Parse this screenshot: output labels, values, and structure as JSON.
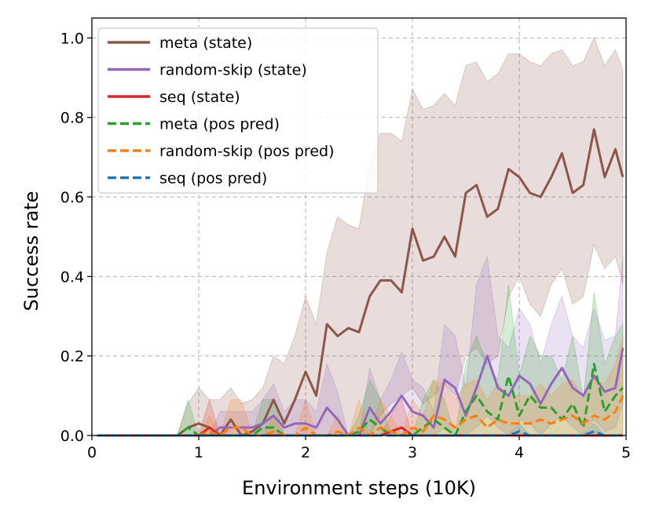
{
  "chart_data": {
    "type": "line",
    "title": "",
    "xlabel": "Environment steps (10K)",
    "ylabel": "Success rate",
    "xlim": [
      0,
      5
    ],
    "ylim": [
      0,
      1.05
    ],
    "grid": true,
    "legend_position": "top-left",
    "x_ticks": [
      0,
      1,
      2,
      3,
      4,
      5
    ],
    "y_ticks": [
      0.0,
      0.2,
      0.4,
      0.6,
      0.8,
      1.0
    ],
    "x_tick_labels": [
      "0",
      "1",
      "2",
      "3",
      "4",
      "5"
    ],
    "y_tick_labels": [
      "0.0",
      "0.2",
      "0.4",
      "0.6",
      "0.8",
      "1.0"
    ],
    "series": [
      {
        "name": "meta (state)",
        "color": "#8c564b",
        "style": "solid",
        "x": [
          0.05,
          0.8,
          0.9,
          1.0,
          1.1,
          1.2,
          1.3,
          1.4,
          1.5,
          1.6,
          1.7,
          1.8,
          1.9,
          2.0,
          2.1,
          2.2,
          2.3,
          2.4,
          2.5,
          2.6,
          2.7,
          2.8,
          2.9,
          3.0,
          3.1,
          3.2,
          3.3,
          3.4,
          3.5,
          3.6,
          3.7,
          3.8,
          3.9,
          4.0,
          4.1,
          4.2,
          4.3,
          4.4,
          4.5,
          4.6,
          4.7,
          4.8,
          4.9,
          4.97
        ],
        "y": [
          0.0,
          0.0,
          0.02,
          0.03,
          0.02,
          0.0,
          0.04,
          0.0,
          0.01,
          0.03,
          0.09,
          0.03,
          0.09,
          0.16,
          0.1,
          0.28,
          0.25,
          0.27,
          0.26,
          0.35,
          0.39,
          0.39,
          0.36,
          0.52,
          0.44,
          0.45,
          0.5,
          0.45,
          0.61,
          0.63,
          0.55,
          0.57,
          0.67,
          0.65,
          0.61,
          0.6,
          0.65,
          0.71,
          0.61,
          0.63,
          0.77,
          0.65,
          0.72,
          0.65
        ],
        "lower": [
          0.0,
          0.0,
          0.0,
          0.0,
          0.0,
          0.0,
          0.0,
          0.0,
          0.0,
          0.0,
          0.0,
          0.0,
          0.0,
          0.0,
          0.0,
          0.0,
          0.0,
          0.0,
          0.0,
          0.0,
          0.05,
          0.08,
          0.1,
          0.12,
          0.08,
          0.1,
          0.13,
          0.1,
          0.2,
          0.22,
          0.18,
          0.2,
          0.35,
          0.4,
          0.33,
          0.3,
          0.38,
          0.42,
          0.33,
          0.35,
          0.48,
          0.42,
          0.45,
          0.38
        ],
        "upper": [
          0.0,
          0.0,
          0.08,
          0.12,
          0.09,
          0.09,
          0.12,
          0.08,
          0.09,
          0.12,
          0.2,
          0.18,
          0.25,
          0.35,
          0.28,
          0.46,
          0.55,
          0.53,
          0.52,
          0.68,
          0.76,
          0.76,
          0.74,
          0.87,
          0.82,
          0.83,
          0.86,
          0.83,
          0.93,
          0.94,
          0.89,
          0.91,
          0.96,
          0.96,
          0.94,
          0.93,
          0.96,
          0.97,
          0.93,
          0.94,
          1.0,
          0.93,
          0.97,
          0.92
        ]
      },
      {
        "name": "random-skip (state)",
        "color": "#9467bd",
        "style": "solid",
        "x": [
          0.05,
          0.8,
          0.9,
          1.0,
          1.1,
          1.2,
          1.3,
          1.4,
          1.5,
          1.6,
          1.7,
          1.8,
          1.9,
          2.0,
          2.1,
          2.2,
          2.3,
          2.4,
          2.5,
          2.6,
          2.7,
          2.8,
          2.9,
          3.0,
          3.1,
          3.2,
          3.3,
          3.4,
          3.5,
          3.6,
          3.7,
          3.8,
          3.9,
          4.0,
          4.1,
          4.2,
          4.3,
          4.4,
          4.5,
          4.6,
          4.7,
          4.8,
          4.9,
          4.97
        ],
        "y": [
          0.0,
          0.0,
          0.0,
          0.0,
          0.0,
          0.02,
          0.02,
          0.02,
          0.02,
          0.03,
          0.05,
          0.02,
          0.03,
          0.03,
          0.02,
          0.07,
          0.04,
          0.0,
          0.0,
          0.07,
          0.03,
          0.06,
          0.1,
          0.06,
          0.05,
          0.02,
          0.14,
          0.12,
          0.05,
          0.12,
          0.2,
          0.12,
          0.1,
          0.15,
          0.13,
          0.08,
          0.13,
          0.17,
          0.12,
          0.1,
          0.15,
          0.11,
          0.12,
          0.22
        ],
        "lower": [
          0.0,
          0.0,
          0.0,
          0.0,
          0.0,
          0.0,
          0.0,
          0.0,
          0.0,
          0.0,
          0.0,
          0.0,
          0.0,
          0.0,
          0.0,
          0.0,
          0.0,
          0.0,
          0.0,
          0.0,
          0.0,
          0.0,
          0.0,
          0.0,
          0.0,
          0.0,
          0.02,
          0.0,
          0.0,
          0.02,
          0.05,
          0.02,
          0.0,
          0.04,
          0.03,
          0.0,
          0.03,
          0.05,
          0.02,
          0.0,
          0.04,
          0.01,
          0.02,
          0.08
        ],
        "upper": [
          0.0,
          0.0,
          0.0,
          0.0,
          0.0,
          0.06,
          0.06,
          0.06,
          0.06,
          0.09,
          0.13,
          0.06,
          0.09,
          0.09,
          0.06,
          0.18,
          0.11,
          0.0,
          0.0,
          0.17,
          0.09,
          0.14,
          0.21,
          0.14,
          0.12,
          0.06,
          0.28,
          0.25,
          0.12,
          0.38,
          0.45,
          0.25,
          0.22,
          0.32,
          0.28,
          0.18,
          0.28,
          0.35,
          0.25,
          0.22,
          0.32,
          0.24,
          0.25,
          0.45
        ]
      },
      {
        "name": "seq (state)",
        "color": "#d62728",
        "style": "solid",
        "x": [
          0.05,
          0.8,
          0.9,
          1.0,
          1.1,
          1.2,
          1.3,
          1.4,
          1.5,
          1.6,
          1.7,
          1.8,
          1.9,
          2.0,
          2.1,
          2.2,
          2.3,
          2.4,
          2.5,
          2.6,
          2.7,
          2.8,
          2.9,
          3.0,
          3.1,
          3.2,
          3.3,
          3.4,
          3.5,
          3.6,
          3.7,
          3.8,
          3.9,
          4.0,
          4.1,
          4.2,
          4.3,
          4.4,
          4.5,
          4.6,
          4.7,
          4.8,
          4.9,
          4.97
        ],
        "y": [
          0.0,
          0.0,
          0.0,
          0.0,
          0.02,
          0.0,
          0.0,
          0.0,
          0.0,
          0.0,
          0.0,
          0.0,
          0.0,
          0.0,
          0.0,
          0.0,
          0.0,
          0.0,
          0.0,
          0.0,
          0.0,
          0.01,
          0.02,
          0.0,
          0.0,
          0.0,
          0.0,
          0.0,
          0.0,
          0.0,
          0.0,
          0.0,
          0.0,
          0.0,
          0.0,
          0.0,
          0.0,
          0.0,
          0.0,
          0.0,
          0.0,
          0.0,
          0.0,
          0.0
        ],
        "lower": [
          0.0,
          0.0,
          0.0,
          0.0,
          0.0,
          0.0,
          0.0,
          0.0,
          0.0,
          0.0,
          0.0,
          0.0,
          0.0,
          0.0,
          0.0,
          0.0,
          0.0,
          0.0,
          0.0,
          0.0,
          0.0,
          0.0,
          0.0,
          0.0,
          0.0,
          0.0,
          0.0,
          0.0,
          0.0,
          0.0,
          0.0,
          0.0,
          0.0,
          0.0,
          0.0,
          0.0,
          0.0,
          0.0,
          0.0,
          0.0,
          0.0,
          0.0,
          0.0,
          0.0
        ],
        "upper": [
          0.0,
          0.0,
          0.0,
          0.0,
          0.09,
          0.0,
          0.0,
          0.0,
          0.0,
          0.0,
          0.0,
          0.0,
          0.0,
          0.0,
          0.0,
          0.0,
          0.0,
          0.0,
          0.0,
          0.0,
          0.0,
          0.05,
          0.09,
          0.0,
          0.0,
          0.0,
          0.0,
          0.0,
          0.0,
          0.0,
          0.0,
          0.0,
          0.0,
          0.0,
          0.0,
          0.0,
          0.0,
          0.0,
          0.0,
          0.0,
          0.0,
          0.0,
          0.0,
          0.0
        ]
      },
      {
        "name": "meta (pos pred)",
        "color": "#2ca02c",
        "style": "dashed",
        "x": [
          0.05,
          0.8,
          0.9,
          1.0,
          1.1,
          1.2,
          1.3,
          1.4,
          1.5,
          1.6,
          1.7,
          1.8,
          1.9,
          2.0,
          2.1,
          2.2,
          2.3,
          2.4,
          2.5,
          2.6,
          2.7,
          2.8,
          2.9,
          3.0,
          3.1,
          3.2,
          3.3,
          3.4,
          3.5,
          3.6,
          3.7,
          3.8,
          3.9,
          4.0,
          4.1,
          4.2,
          4.3,
          4.4,
          4.5,
          4.6,
          4.7,
          4.8,
          4.9,
          4.97
        ],
        "y": [
          0.0,
          0.0,
          0.02,
          0.0,
          0.0,
          0.0,
          0.0,
          0.0,
          0.0,
          0.02,
          0.02,
          0.0,
          0.0,
          0.0,
          0.0,
          0.0,
          0.0,
          0.0,
          0.01,
          0.04,
          0.02,
          0.0,
          0.0,
          0.0,
          0.02,
          0.04,
          0.02,
          0.0,
          0.06,
          0.1,
          0.06,
          0.04,
          0.15,
          0.05,
          0.1,
          0.07,
          0.07,
          0.04,
          0.08,
          0.02,
          0.18,
          0.06,
          0.1,
          0.12
        ],
        "lower": [
          0.0,
          0.0,
          0.0,
          0.0,
          0.0,
          0.0,
          0.0,
          0.0,
          0.0,
          0.0,
          0.0,
          0.0,
          0.0,
          0.0,
          0.0,
          0.0,
          0.0,
          0.0,
          0.0,
          0.0,
          0.0,
          0.0,
          0.0,
          0.0,
          0.0,
          0.0,
          0.0,
          0.0,
          0.0,
          0.0,
          0.0,
          0.0,
          0.0,
          0.0,
          0.0,
          0.0,
          0.0,
          0.0,
          0.0,
          0.0,
          0.0,
          0.0,
          0.0,
          0.0
        ],
        "upper": [
          0.0,
          0.0,
          0.09,
          0.0,
          0.0,
          0.0,
          0.0,
          0.0,
          0.0,
          0.09,
          0.09,
          0.0,
          0.0,
          0.0,
          0.0,
          0.0,
          0.0,
          0.0,
          0.05,
          0.14,
          0.09,
          0.0,
          0.0,
          0.0,
          0.09,
          0.14,
          0.09,
          0.0,
          0.18,
          0.25,
          0.18,
          0.14,
          0.38,
          0.15,
          0.25,
          0.2,
          0.2,
          0.14,
          0.25,
          0.09,
          0.36,
          0.18,
          0.25,
          0.28
        ]
      },
      {
        "name": "random-skip (pos pred)",
        "color": "#ff7f0e",
        "style": "dashed",
        "x": [
          0.05,
          0.8,
          0.9,
          1.0,
          1.1,
          1.2,
          1.3,
          1.4,
          1.5,
          1.6,
          1.7,
          1.8,
          1.9,
          2.0,
          2.1,
          2.2,
          2.3,
          2.4,
          2.5,
          2.6,
          2.7,
          2.8,
          2.9,
          3.0,
          3.1,
          3.2,
          3.3,
          3.4,
          3.5,
          3.6,
          3.7,
          3.8,
          3.9,
          4.0,
          4.1,
          4.2,
          4.3,
          4.4,
          4.5,
          4.6,
          4.7,
          4.8,
          4.9,
          4.97
        ],
        "y": [
          0.0,
          0.0,
          0.0,
          0.0,
          0.01,
          0.0,
          0.02,
          0.02,
          0.0,
          0.0,
          0.01,
          0.0,
          0.0,
          0.02,
          0.0,
          0.0,
          0.01,
          0.0,
          0.02,
          0.0,
          0.02,
          0.01,
          0.0,
          0.02,
          0.01,
          0.05,
          0.04,
          0.02,
          0.04,
          0.05,
          0.02,
          0.04,
          0.03,
          0.03,
          0.03,
          0.04,
          0.03,
          0.04,
          0.05,
          0.03,
          0.05,
          0.04,
          0.06,
          0.1
        ],
        "lower": [
          0.0,
          0.0,
          0.0,
          0.0,
          0.0,
          0.0,
          0.0,
          0.0,
          0.0,
          0.0,
          0.0,
          0.0,
          0.0,
          0.0,
          0.0,
          0.0,
          0.0,
          0.0,
          0.0,
          0.0,
          0.0,
          0.0,
          0.0,
          0.0,
          0.0,
          0.0,
          0.0,
          0.0,
          0.0,
          0.0,
          0.0,
          0.0,
          0.0,
          0.0,
          0.0,
          0.0,
          0.0,
          0.0,
          0.0,
          0.0,
          0.0,
          0.0,
          0.0,
          0.0
        ],
        "upper": [
          0.0,
          0.0,
          0.0,
          0.0,
          0.05,
          0.0,
          0.09,
          0.09,
          0.0,
          0.0,
          0.05,
          0.0,
          0.0,
          0.09,
          0.0,
          0.0,
          0.05,
          0.0,
          0.09,
          0.0,
          0.09,
          0.05,
          0.0,
          0.09,
          0.05,
          0.14,
          0.13,
          0.09,
          0.13,
          0.14,
          0.09,
          0.13,
          0.1,
          0.1,
          0.1,
          0.13,
          0.1,
          0.13,
          0.14,
          0.1,
          0.14,
          0.13,
          0.18,
          0.25
        ]
      },
      {
        "name": "seq (pos pred)",
        "color": "#1f77b4",
        "style": "dashed",
        "x": [
          0.05,
          0.8,
          0.9,
          1.0,
          1.1,
          1.2,
          1.3,
          1.4,
          1.5,
          1.6,
          1.7,
          1.8,
          1.9,
          2.0,
          2.1,
          2.2,
          2.3,
          2.4,
          2.5,
          2.6,
          2.7,
          2.8,
          2.9,
          3.0,
          3.1,
          3.2,
          3.3,
          3.4,
          3.5,
          3.6,
          3.7,
          3.8,
          3.9,
          4.0,
          4.1,
          4.2,
          4.3,
          4.4,
          4.5,
          4.6,
          4.7,
          4.8,
          4.9,
          4.97
        ],
        "y": [
          0.0,
          0.0,
          0.0,
          0.0,
          0.0,
          0.0,
          0.0,
          0.0,
          0.0,
          0.0,
          0.0,
          0.0,
          0.0,
          0.0,
          0.0,
          0.0,
          0.0,
          0.0,
          0.0,
          0.0,
          0.0,
          0.0,
          0.0,
          0.0,
          0.0,
          0.0,
          0.0,
          0.0,
          0.0,
          0.0,
          0.0,
          0.0,
          0.0,
          0.01,
          0.0,
          0.0,
          0.0,
          0.0,
          0.0,
          0.0,
          0.01,
          0.0,
          0.0,
          0.0
        ],
        "lower": [
          0.0,
          0.0,
          0.0,
          0.0,
          0.0,
          0.0,
          0.0,
          0.0,
          0.0,
          0.0,
          0.0,
          0.0,
          0.0,
          0.0,
          0.0,
          0.0,
          0.0,
          0.0,
          0.0,
          0.0,
          0.0,
          0.0,
          0.0,
          0.0,
          0.0,
          0.0,
          0.0,
          0.0,
          0.0,
          0.0,
          0.0,
          0.0,
          0.0,
          0.0,
          0.0,
          0.0,
          0.0,
          0.0,
          0.0,
          0.0,
          0.0,
          0.0,
          0.0,
          0.0
        ],
        "upper": [
          0.0,
          0.0,
          0.0,
          0.0,
          0.0,
          0.0,
          0.0,
          0.0,
          0.0,
          0.0,
          0.0,
          0.0,
          0.0,
          0.0,
          0.0,
          0.0,
          0.0,
          0.0,
          0.0,
          0.0,
          0.0,
          0.0,
          0.0,
          0.0,
          0.0,
          0.0,
          0.0,
          0.0,
          0.0,
          0.0,
          0.0,
          0.0,
          0.0,
          0.03,
          0.0,
          0.0,
          0.0,
          0.0,
          0.0,
          0.0,
          0.03,
          0.0,
          0.0,
          0.0
        ]
      }
    ]
  }
}
